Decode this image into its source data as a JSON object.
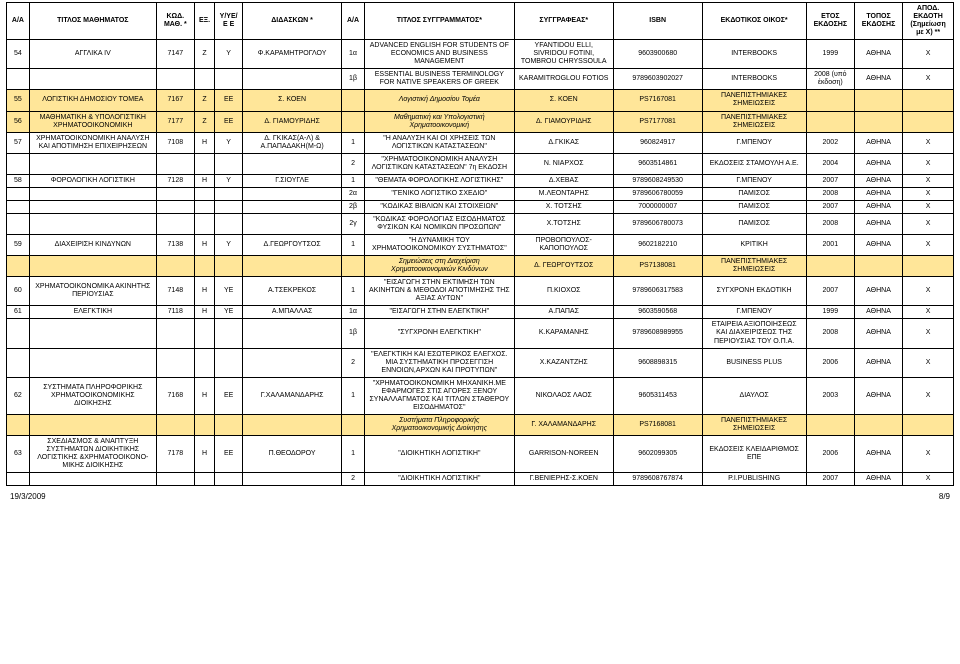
{
  "headers": {
    "aa": "Α/Α",
    "title": "ΤΙΤΛΟΣ ΜΑΘΗΜΑΤΟΣ",
    "kwd": "ΚΩΔ. ΜΑΘ. *",
    "ex": "ΕΞ.",
    "yyee": "Υ/ΥΕ/Ε Ε",
    "did": "ΔΙΔΑΣΚΩΝ *",
    "aa2": "Α/Α",
    "book": "ΤΙΤΛΟΣ ΣΥΓΓΡΑΜΜΑΤΟΣ*",
    "auth": "ΣΥΓΓΡΑΦΕΑΣ*",
    "isbn": "ISBN",
    "pub": "ΕΚΔΟΤΙΚΟΣ ΟΙΚΟΣ*",
    "year": "ΕΤΟΣ ΕΚΔΟΣΗΣ",
    "place": "ΤΟΠΟΣ ΕΚΔΟΣΗΣ",
    "apod": "ΑΠΟΔ. ΕΚΔΟΤΗ (Σημείωση με Χ) **"
  },
  "rows": [
    {
      "aa": "54",
      "title": "ΑΓΓΛΙΚΑ IV",
      "kwd": "7147",
      "ex": "Ζ",
      "yyee": "Υ",
      "did": "Φ.ΚΑΡΑΜΗΤΡΟΓΛΟΥ",
      "aa2": "1α",
      "book": "ADVANCED ENGLISH FOR STUDENTS OF ECONOMICS AND BUSINESS MANAGEMENT",
      "auth": "YFANTIDOU ELLI, SIVRIDOU FOTINI, TOMBROU CHRYSSOULA",
      "isbn": "9603900680",
      "pub": "INTERBOOKS",
      "year": "1999",
      "place": "ΑΘΗΝΑ",
      "apod": "X",
      "hl": false,
      "it": false
    },
    {
      "aa": "",
      "title": "",
      "kwd": "",
      "ex": "",
      "yyee": "",
      "did": "",
      "aa2": "1β",
      "book": "ESSENTIAL BUSINESS TERMINOLOGY FOR NATIVE SPEAKERS OF GREEK",
      "auth": "KARAMITROGLOU FOTIOS",
      "isbn": "9789603902027",
      "pub": "INTERBOOKS",
      "year": "2008 (υπό έκδοση)",
      "place": "ΑΘΗΝΑ",
      "apod": "X",
      "hl": false,
      "it": false
    },
    {
      "aa": "55",
      "title": "ΛΟΓΙΣΤΙΚΗ ΔΗΜΟΣΙΟΥ ΤΟΜΕΑ",
      "kwd": "7167",
      "ex": "Ζ",
      "yyee": "ΕΕ",
      "did": "Σ. ΚΟΕΝ",
      "aa2": "",
      "book": "Λογιστική Δημοσίου Τομέα",
      "auth": "Σ. ΚΟΕΝ",
      "isbn": "PS7167081",
      "pub": "ΠΑΝΕΠΙΣΤΗΜΙΑΚΕΣ ΣΗΜΕΙΩΣΕΙΣ",
      "year": "",
      "place": "",
      "apod": "",
      "hl": true,
      "it": true
    },
    {
      "aa": "56",
      "title": "ΜΑΘΗΜΑΤΙΚΗ & ΥΠΟΛΟΓΙΣΤΙΚΗ ΧΡΗΜΑΤΟΟΙΚΟΝΟΜΙΚΗ",
      "kwd": "7177",
      "ex": "Ζ",
      "yyee": "ΕΕ",
      "did": "Δ. ΓΙΑΜΟΥΡΙΔΗΣ",
      "aa2": "",
      "book": "Μαθηματική και Υπολογιστική Χρηματοοικονομική",
      "auth": "Δ. ΓΙΑΜΟΥΡΙΔΗΣ",
      "isbn": "PS7177081",
      "pub": "ΠΑΝΕΠΙΣΤΗΜΙΑΚΕΣ ΣΗΜΕΙΩΣΕΙΣ",
      "year": "",
      "place": "",
      "apod": "",
      "hl": true,
      "it": true
    },
    {
      "aa": "57",
      "title": "ΧΡΗΜΑΤΟΟΙΚΟΝΟΜΙΚΗ ΑΝΑΛΥΣΗ ΚΑΙ ΑΠΟΤΙΜΗΣΗ ΕΠΙΧΕΙΡΗΣΕΩΝ",
      "kwd": "7108",
      "ex": "Η",
      "yyee": "Υ",
      "did": "Δ. ΓΚΙΚΑΣ(Α-Λ) & Α.ΠΑΠΑΔΑΚΗ(Μ-Ω)",
      "aa2": "1",
      "book": "\"Η ΑΝΑΛΥΣΗ ΚΑΙ ΟΙ ΧΡΗΣΕΙΣ ΤΩΝ ΛΟΓΙΣΤΙΚΩΝ ΚΑΤΑΣΤΑΣΕΩΝ\"",
      "auth": "Δ.ΓΚΙΚΑΣ",
      "isbn": "960824917",
      "pub": "Γ.ΜΠΕΝΟΥ",
      "year": "2002",
      "place": "ΑΘΗΝΑ",
      "apod": "X",
      "hl": false,
      "it": false
    },
    {
      "aa": "",
      "title": "",
      "kwd": "",
      "ex": "",
      "yyee": "",
      "did": "",
      "aa2": "2",
      "book": "\"ΧΡΗΜΑΤΟΟΙΚΟΝΟΜΙΚΗ ΑΝΑΛΥΣΗ ΛΟΓΙΣΤΙΚΩΝ ΚΑΤΑΣΤΑΣΕΩΝ\" 7η ΕΚΔΟΣΗ",
      "auth": "Ν. ΝΙΑΡΧΟΣ",
      "isbn": "9603514861",
      "pub": "ΕΚΔΟΣΕΙΣ ΣΤΑΜΟΥΛΗ Α.Ε.",
      "year": "2004",
      "place": "ΑΘΗΝΑ",
      "apod": "X",
      "hl": false,
      "it": false
    },
    {
      "aa": "58",
      "title": "ΦΟΡΟΛΟΓΙΚΗ ΛΟΓΙΣΤΙΚΗ",
      "kwd": "7128",
      "ex": "Η",
      "yyee": "Υ",
      "did": "Γ.ΣΙΟΥΓΛΕ",
      "aa2": "1",
      "book": "\"ΘΕΜΑΤΑ ΦΟΡΟΛΟΓΙΚΗΣ ΛΟΓΙΣΤΙΚΗΣ\"",
      "auth": "Δ.ΧΕΒΑΣ",
      "isbn": "9789608249530",
      "pub": "Γ.ΜΠΕΝΟΥ",
      "year": "2007",
      "place": "ΑΘΗΝΑ",
      "apod": "X",
      "hl": false,
      "it": false
    },
    {
      "aa": "",
      "title": "",
      "kwd": "",
      "ex": "",
      "yyee": "",
      "did": "",
      "aa2": "2α",
      "book": "\"ΓΕΝΙΚΟ ΛΟΓΙΣΤΙΚΟ ΣΧΕΔΙΟ\"",
      "auth": "Μ.ΛΕΟΝΤΑΡΗΣ",
      "isbn": "9789606780059",
      "pub": "ΠΑΜΙΣΟΣ",
      "year": "2008",
      "place": "ΑΘΗΝΑ",
      "apod": "X",
      "hl": false,
      "it": false
    },
    {
      "aa": "",
      "title": "",
      "kwd": "",
      "ex": "",
      "yyee": "",
      "did": "",
      "aa2": "2β",
      "book": "\"ΚΩΔΙΚΑΣ ΒΙΒΛΙΩΝ ΚΑΙ ΣΤΟΙΧΕΙΩΝ\"",
      "auth": "Χ. ΤΟΤΣΗΣ",
      "isbn": "7000000007",
      "pub": "ΠΑΜΙΣΟΣ",
      "year": "2007",
      "place": "ΑΘΗΝΑ",
      "apod": "X",
      "hl": false,
      "it": false
    },
    {
      "aa": "",
      "title": "",
      "kwd": "",
      "ex": "",
      "yyee": "",
      "did": "",
      "aa2": "2γ",
      "book": "\"ΚΩΔΙΚΑΣ ΦΟΡΟΛΟΓΙΑΣ ΕΙΣΟΔΗΜΑΤΟΣ ΦΥΣΙΚΩΝ ΚΑΙ ΝΟΜΙΚΩΝ ΠΡΟΣΩΠΩΝ\"",
      "auth": "Χ.ΤΟΤΣΗΣ",
      "isbn": "9789606780073",
      "pub": "ΠΑΜΙΣΟΣ",
      "year": "2008",
      "place": "ΑΘΗΝΑ",
      "apod": "X",
      "hl": false,
      "it": false
    },
    {
      "aa": "59",
      "title": "ΔΙΑΧΕΙΡΙΣΗ ΚΙΝΔΥΝΩΝ",
      "kwd": "7138",
      "ex": "Η",
      "yyee": "Υ",
      "did": "Δ.ΓΕΩΡΓΟΥΤΣΟΣ",
      "aa2": "1",
      "book": "\"Η ΔΥΝΑΜΙΚΗ ΤΟΥ ΧΡΗΜΑΤΟΟΙΚΟΝΟΜΙΚΟΥ ΣΥΣΤΗΜΑΤΟΣ\"",
      "auth": "ΠΡΟΒΟΠΟΥΛΟΣ-ΚΑΠΟΠΟΥΛΟΣ",
      "isbn": "9602182210",
      "pub": "ΚΡΙΤΙΚΗ",
      "year": "2001",
      "place": "ΑΘΗΝΑ",
      "apod": "X",
      "hl": false,
      "it": false
    },
    {
      "aa": "",
      "title": "",
      "kwd": "",
      "ex": "",
      "yyee": "",
      "did": "",
      "aa2": "",
      "book": "Σημειώσεις στη Διαχείριση Χρηματοοικονομικών Κινδύνων",
      "auth": "Δ. ΓΕΩΡΓΟΥΤΣΟΣ",
      "isbn": "PS7138081",
      "pub": "ΠΑΝΕΠΙΣΤΗΜΙΑΚΕΣ ΣΗΜΕΙΩΣΕΙΣ",
      "year": "",
      "place": "",
      "apod": "",
      "hl": true,
      "it": true
    },
    {
      "aa": "60",
      "title": "ΧΡΗΜΑΤΟΟΙΚΟΝΟΜΙΚΑ ΑΚΙΝΗΤΗΣ ΠΕΡΙΟΥΣΙΑΣ",
      "kwd": "7148",
      "ex": "Η",
      "yyee": "ΥΕ",
      "did": "Α.ΤΣΕΚΡΕΚΟΣ",
      "aa2": "1",
      "book": "\"ΕΙΣΑΓΩΓΗ ΣΤΗΝ ΕΚΤΙΜΗΣΗ ΤΩΝ ΑΚΙΝΗΤΩΝ & ΜΕΘΟΔΟΙ ΑΠΟΤΙΜΗΣΗΣ ΤΗΣ ΑΞΙΑΣ ΑΥΤΩΝ\"",
      "auth": "Π.ΚΙΟΧΟΣ",
      "isbn": "9789606317583",
      "pub": "ΣΥΓΧΡΟΝΗ ΕΚΔΟΤΙΚΗ",
      "year": "2007",
      "place": "ΑΘΗΝΑ",
      "apod": "X",
      "hl": false,
      "it": false
    },
    {
      "aa": "61",
      "title": "ΕΛΕΓΚΤΙΚΗ",
      "kwd": "7118",
      "ex": "Η",
      "yyee": "ΥΕ",
      "did": "Α.ΜΠΑΛΛΑΣ",
      "aa2": "1α",
      "book": "\"ΕΙΣΑΓΩΓΗ ΣΤΗΝ ΕΛΕΓΚΤΙΚΗ\"",
      "auth": "Α.ΠΑΠΑΣ",
      "isbn": "9603590568",
      "pub": "Γ.ΜΠΕΝΟΥ",
      "year": "1999",
      "place": "ΑΘΗΝΑ",
      "apod": "X",
      "hl": false,
      "it": false
    },
    {
      "aa": "",
      "title": "",
      "kwd": "",
      "ex": "",
      "yyee": "",
      "did": "",
      "aa2": "1β",
      "book": "\"ΣΥΓΧΡΟΝΗ ΕΛΕΓΚΤΙΚΗ\"",
      "auth": "Κ.ΚΑΡΑΜΑΝΗΣ",
      "isbn": "9789608989955",
      "pub": "ΕΤΑΙΡΕΙΑ ΑΞΙΟΠΟΙΗΣΕΩΣ ΚΑΙ ΔΙΑΧΕΙΡΙΣΕΩΣ ΤΗΣ ΠΕΡΙΟΥΣΙΑΣ ΤΟΥ Ο.Π.Α.",
      "year": "2008",
      "place": "ΑΘΗΝΑ",
      "apod": "X",
      "hl": false,
      "it": false
    },
    {
      "aa": "",
      "title": "",
      "kwd": "",
      "ex": "",
      "yyee": "",
      "did": "",
      "aa2": "2",
      "book": "\"ΕΛΕΓΚΤΙΚΗ ΚΑΙ ΕΣΩΤΕΡΙΚΟΣ ΕΛΕΓΧΟΣ. ΜΙΑ ΣΥΣΤΗΜΑΤΙΚΗ ΠΡΟΣΕΓΓΙΣΗ ΕΝΝΟΙΩΝ,ΑΡΧΩΝ ΚΑΙ ΠΡΟΤΥΠΩΝ\"",
      "auth": "Χ.ΚΑΖΑΝΤΖΗΣ",
      "isbn": "9608898315",
      "pub": "BUSINESS PLUS",
      "year": "2006",
      "place": "ΑΘΗΝΑ",
      "apod": "X",
      "hl": false,
      "it": false
    },
    {
      "aa": "62",
      "title": "ΣΥΣΤΗΜΑΤΑ ΠΛΗΡΟΦΟΡΙΚΗΣ ΧΡΗΜΑΤΟΟΙΚΟΝΟΜΙΚΗΣ ΔΙΟΙΚΗΣΗΣ",
      "kwd": "7168",
      "ex": "Η",
      "yyee": "ΕΕ",
      "did": "Γ.ΧΑΛΑΜΑΝΔΑΡΗΣ",
      "aa2": "1",
      "book": "\"ΧΡΗΜΑΤΟΟΙΚΟΝΟΜΙΚΗ ΜΗΧΑΝΙΚΗ.ΜΕ ΕΦΑΡΜΟΓΕΣ ΣΤΙΣ ΑΓΟΡΕΣ ΞΕΝΟΥ ΣΥΝΑΛΛΑΓΜΑΤΟΣ ΚΑΙ ΤΙΤΛΩΝ ΣΤΑΘΕΡΟΥ ΕΙΣΟΔΗΜΑΤΟΣ\"",
      "auth": "ΝΙΚΟΛΑΟΣ ΛΑΟΣ",
      "isbn": "9605311453",
      "pub": "ΔΙΑΥΛΟΣ",
      "year": "2003",
      "place": "ΑΘΗΝΑ",
      "apod": "X",
      "hl": false,
      "it": false
    },
    {
      "aa": "",
      "title": "",
      "kwd": "",
      "ex": "",
      "yyee": "",
      "did": "",
      "aa2": "",
      "book": "Συστήματα Πληροφορικής Χρηματοοικονομικής Διοίκησης",
      "auth": "Γ. ΧΑΛΑΜΑΝΔΑΡΗΣ",
      "isbn": "PS7168081",
      "pub": "ΠΑΝΕΠΙΣΤΗΜΙΑΚΕΣ ΣΗΜΕΙΩΣΕΙΣ",
      "year": "",
      "place": "",
      "apod": "",
      "hl": true,
      "it": true
    },
    {
      "aa": "63",
      "title": "ΣΧΕΔΙΑΣΜΟΣ & ΑΝΑΠΤΥΞΗ ΣΥΣΤΗΜΑΤΩΝ ΔΙΟΙΚΗΤΙΚΗΣ ΛΟΓΙΣΤΙΚΗΣ &ΧΡΗΜΑΤΟΟΙΚΟΝΟ-ΜΙΚΗΣ ΔΙΟΙΚΗΣΗΣ",
      "kwd": "7178",
      "ex": "Η",
      "yyee": "ΕΕ",
      "did": "Π.ΘΕΟΔΟΡΟΥ",
      "aa2": "1",
      "book": "\"ΔΙΟΙΚΗΤΙΚΗ ΛΟΓΙΣΤΙΚΗ\"",
      "auth": "GARRISON-NOREEN",
      "isbn": "9602099305",
      "pub": "ΕΚΔΟΣΕΙΣ ΚΛΕΙΔΑΡΙΘΜΟΣ ΕΠΕ",
      "year": "2006",
      "place": "ΑΘΗΝΑ",
      "apod": "X",
      "hl": false,
      "it": false
    },
    {
      "aa": "",
      "title": "",
      "kwd": "",
      "ex": "",
      "yyee": "",
      "did": "",
      "aa2": "2",
      "book": "\"ΔΙΟΙΚΗΤΙΚΗ ΛΟΓΙΣΤΙΚΗ\"",
      "auth": "Γ.ΒΕΝΙΕΡΗΣ-Σ.ΚΟΕΝ",
      "isbn": "9789608767874",
      "pub": "Ρ.I.PUBLISHING",
      "year": "2007",
      "place": "ΑΘΗΝΑ",
      "apod": "X",
      "hl": false,
      "it": false
    }
  ],
  "footer": {
    "date": "19/3/2009",
    "page": "8/9"
  }
}
